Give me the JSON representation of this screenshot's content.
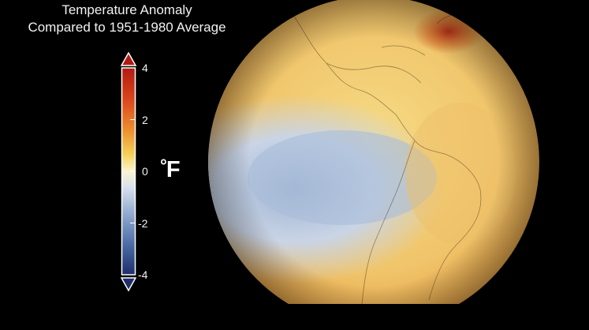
{
  "title": {
    "line1": "Temperature Anomaly",
    "line2": "Compared to 1951-1980 Average"
  },
  "colorbar": {
    "unit_symbol": "°",
    "unit_letter": "F",
    "ticks": [
      {
        "value": 4,
        "label": "4"
      },
      {
        "value": 2,
        "label": "2"
      },
      {
        "value": 0,
        "label": "0"
      },
      {
        "value": -2,
        "label": "-2"
      },
      {
        "value": -4,
        "label": "-4"
      }
    ],
    "colors": {
      "max": "#b11a12",
      "warm": "#e0782c",
      "mid_warm": "#f3c23d",
      "neutral": "#fbf3d2",
      "cool": "#c7d3e6",
      "mid_cool": "#5d80b5",
      "min": "#1d2e6b"
    }
  },
  "globe": {
    "depicts": "globe-americas-temperature-anomaly"
  }
}
